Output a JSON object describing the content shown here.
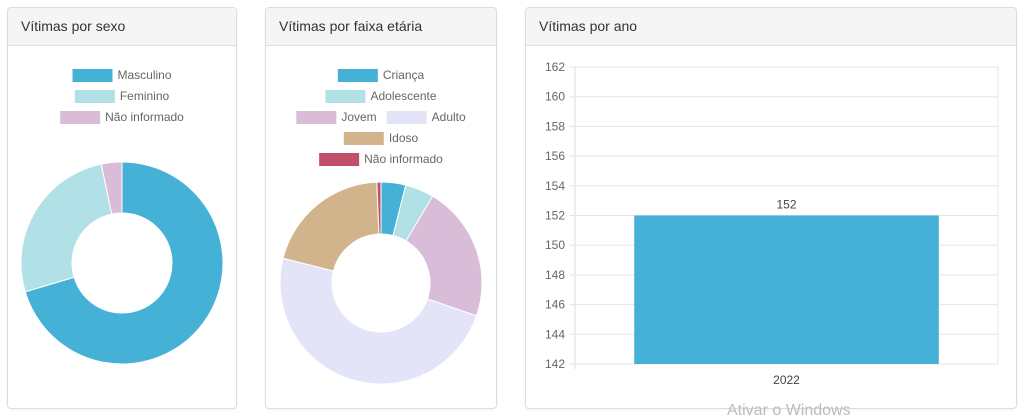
{
  "chart_data": [
    {
      "type": "pie",
      "variant": "doughnut",
      "title": "Vítimas por sexo",
      "labels": [
        "Masculino",
        "Feminino",
        "Não informado"
      ],
      "values": [
        107,
        40,
        5
      ],
      "colors": [
        "#45b1d6",
        "#b1e0e6",
        "#d8bcd8"
      ],
      "legend": "top"
    },
    {
      "type": "pie",
      "variant": "doughnut",
      "title": "Vítimas por faixa etária",
      "labels": [
        "Criança",
        "Adolescente",
        "Jovem",
        "Adulto",
        "Idoso",
        "Não informado"
      ],
      "values": [
        6,
        7,
        33,
        74,
        31,
        1
      ],
      "colors": [
        "#45b1d6",
        "#b1e0e6",
        "#d8bcd8",
        "#e4e4f8",
        "#d2b48c",
        "#c0506a"
      ],
      "legend": "top"
    },
    {
      "type": "bar",
      "title": "Vítimas por ano",
      "categories": [
        "2022"
      ],
      "values": [
        152
      ],
      "color": "#45b1d6",
      "ylim": [
        142,
        162
      ],
      "yticks": [
        142,
        144,
        146,
        148,
        150,
        152,
        154,
        156,
        158,
        160,
        162
      ],
      "grid": true,
      "data_labels": true
    }
  ],
  "watermark": "Ativar o Windows"
}
